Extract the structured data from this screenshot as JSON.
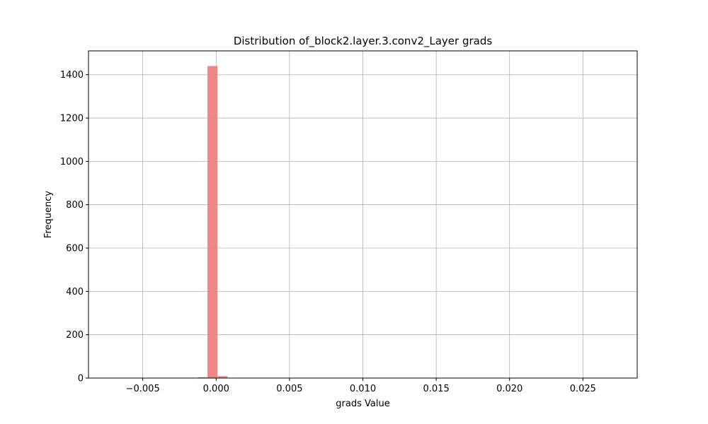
{
  "chart_data": {
    "type": "bar",
    "title": "Distribution of_block2.layer.3.conv2_Layer grads",
    "xlabel": "grads Value",
    "ylabel": "Frequency",
    "xlim": [
      -0.0087,
      0.0287
    ],
    "ylim": [
      0,
      1510
    ],
    "xticks": [
      -0.005,
      0.0,
      0.005,
      0.01,
      0.015,
      0.02,
      0.025
    ],
    "xtick_labels": [
      "−0.005",
      "0.000",
      "0.005",
      "0.010",
      "0.015",
      "0.020",
      "0.025"
    ],
    "yticks": [
      0,
      200,
      400,
      600,
      800,
      1000,
      1200,
      1400
    ],
    "ytick_labels": [
      "0",
      "200",
      "400",
      "600",
      "800",
      "1000",
      "1200",
      "1400"
    ],
    "grid": true,
    "bar_color": "#f08080",
    "bins": [
      {
        "x0": -0.00127,
        "x1": -0.00059,
        "value": 4
      },
      {
        "x0": -0.00059,
        "x1": 9e-05,
        "value": 1440
      },
      {
        "x0": 9e-05,
        "x1": 0.00077,
        "value": 9
      },
      {
        "x0": 0.00077,
        "x1": 0.00145,
        "value": 1
      }
    ]
  }
}
